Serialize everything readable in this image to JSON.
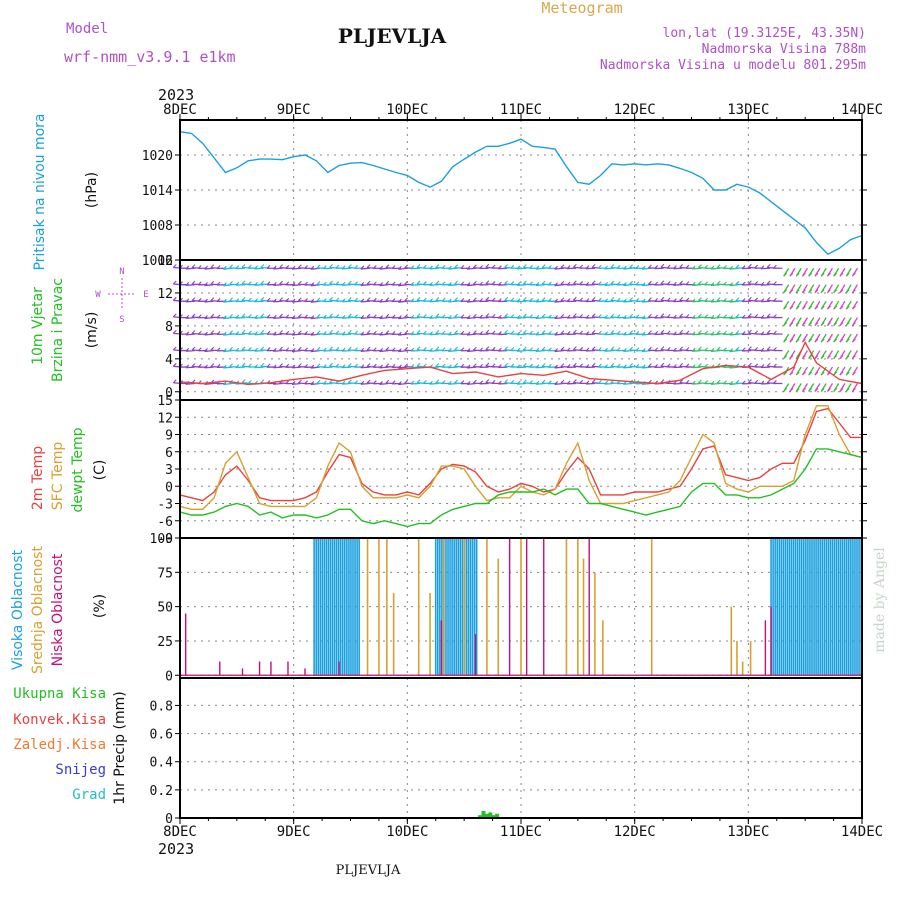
{
  "header": {
    "model_label": "Model",
    "model_name": "wrf-nmm_v3.9.1  e1km",
    "meteogram": "Meteogram",
    "station": "PLJEVLJA",
    "coords": "lon,lat (19.3125E, 43.35N)",
    "elevation": "Nadmorska Visina 788m",
    "model_elevation": "Nadmorska Visina u modelu 801.295m"
  },
  "footer": {
    "station": "PLJEVLJA",
    "watermark": "made by Angel"
  },
  "time_axis": {
    "year": "2023",
    "labels": [
      "8DEC",
      "9DEC",
      "10DEC",
      "11DEC",
      "12DEC",
      "13DEC",
      "14DEC"
    ]
  },
  "colors": {
    "pressure": "#1aa0e0",
    "wind_speed": "#8a3f99",
    "t2m": "#e8423f",
    "sfc": "#d8a030",
    "dewpt": "#22c022",
    "high_cloud": "#1aa0e0",
    "mid_cloud": "#d8a030",
    "low_cloud": "#c0107a",
    "precip": "#22c022"
  },
  "chart_data": [
    {
      "type": "line",
      "panel": "pressure",
      "ylabel": [
        "Pritisak na nivou mora",
        "(hPa)"
      ],
      "yticks": [
        "1020",
        "1014",
        "1008",
        "1002"
      ],
      "ylim": [
        1002,
        1026
      ],
      "x_days": [
        0,
        0.1,
        0.2,
        0.3,
        0.4,
        0.5,
        0.6,
        0.7,
        0.8,
        0.9,
        1.0,
        1.1,
        1.2,
        1.3,
        1.4,
        1.5,
        1.6,
        1.7,
        1.8,
        1.9,
        2.0,
        2.1,
        2.2,
        2.3,
        2.4,
        2.5,
        2.6,
        2.7,
        2.8,
        2.9,
        3.0,
        3.1,
        3.2,
        3.3,
        3.4,
        3.5,
        3.6,
        3.7,
        3.8,
        3.9,
        4.0,
        4.1,
        4.2,
        4.3,
        4.4,
        4.5,
        4.6,
        4.7,
        4.8,
        4.9,
        5.0,
        5.1,
        5.2,
        5.3,
        5.4,
        5.5,
        5.6,
        5.7,
        5.8,
        5.9,
        6.0
      ],
      "values": [
        1024,
        1023.7,
        1022,
        1019.5,
        1017,
        1017.8,
        1019,
        1019.3,
        1019.3,
        1019.2,
        1019.7,
        1020,
        1019,
        1017,
        1018.2,
        1018.6,
        1018.7,
        1018.2,
        1017.6,
        1017,
        1016.5,
        1015.3,
        1014.5,
        1015.5,
        1018,
        1019.3,
        1020.5,
        1021.5,
        1021.5,
        1022,
        1022.7,
        1021.5,
        1021.3,
        1021,
        1018,
        1015.3,
        1015,
        1016.5,
        1018.5,
        1018.3,
        1018.5,
        1018.3,
        1018.5,
        1018.3,
        1017.7,
        1017,
        1016,
        1014,
        1014,
        1015,
        1014.5,
        1013.5,
        1012,
        1010.5,
        1009,
        1007.5,
        1005,
        1003,
        1004,
        1005.5,
        1006.2
      ]
    },
    {
      "type": "line",
      "panel": "wind",
      "ylabel": [
        "10m Vjetar",
        "Brzina i Pravac",
        "(m/s)"
      ],
      "compass": {
        "n": "N",
        "s": "S",
        "e": "E",
        "w": "W"
      },
      "yticks": [
        "16",
        "12",
        "8",
        "4",
        "0"
      ],
      "ylim": [
        -1,
        16
      ],
      "x_days": [
        0,
        0.2,
        0.4,
        0.6,
        0.8,
        1.0,
        1.2,
        1.4,
        1.6,
        1.8,
        2.0,
        2.2,
        2.4,
        2.6,
        2.8,
        3.0,
        3.2,
        3.4,
        3.6,
        3.8,
        4.0,
        4.2,
        4.4,
        4.6,
        4.8,
        5.0,
        5.2,
        5.4,
        5.5,
        5.6,
        5.8,
        6.0
      ],
      "values": [
        1.2,
        1.0,
        1.3,
        0.9,
        1.1,
        1.5,
        1.8,
        1.3,
        2.0,
        2.6,
        2.8,
        3.0,
        2.2,
        2.4,
        1.8,
        2.2,
        2.0,
        2.5,
        1.6,
        1.4,
        1.2,
        1.0,
        1.4,
        2.8,
        3.2,
        3.0,
        1.5,
        3.0,
        6.0,
        3.5,
        1.5,
        1.0
      ]
    },
    {
      "type": "line",
      "panel": "temperature",
      "ylabel": [
        "2m Temp",
        "SFC Temp",
        "dewpt Temp",
        "(C)"
      ],
      "yticks": [
        "15",
        "12",
        "9",
        "6",
        "3",
        "0",
        "-3",
        "-6",
        "-9"
      ],
      "ylim": [
        -9,
        15
      ],
      "x_days": [
        0,
        0.1,
        0.2,
        0.3,
        0.4,
        0.5,
        0.6,
        0.7,
        0.8,
        0.9,
        1.0,
        1.1,
        1.2,
        1.3,
        1.4,
        1.5,
        1.6,
        1.7,
        1.8,
        1.9,
        2.0,
        2.1,
        2.2,
        2.3,
        2.4,
        2.5,
        2.6,
        2.7,
        2.8,
        2.9,
        3.0,
        3.1,
        3.2,
        3.3,
        3.4,
        3.5,
        3.6,
        3.7,
        3.8,
        3.9,
        4.0,
        4.1,
        4.2,
        4.3,
        4.4,
        4.5,
        4.6,
        4.7,
        4.8,
        4.9,
        5.0,
        5.1,
        5.2,
        5.3,
        5.4,
        5.5,
        5.6,
        5.7,
        5.8,
        5.9,
        6.0
      ],
      "series": [
        {
          "name": "2m Temp",
          "values": [
            -1.5,
            -2,
            -2.5,
            -1,
            2,
            3.5,
            1,
            -2,
            -2.5,
            -2.5,
            -2.5,
            -2,
            -1,
            2.5,
            5.5,
            5,
            0.5,
            -1,
            -1.5,
            -1.5,
            -1,
            -1.5,
            0.5,
            3,
            3.8,
            3.5,
            2.5,
            0,
            -1,
            -0.5,
            0.5,
            0,
            -1,
            -0.5,
            2.5,
            5,
            3,
            -1.5,
            -1.5,
            -1.5,
            -1,
            -1,
            -1,
            -0.5,
            0,
            3,
            6.5,
            7,
            2,
            1.5,
            1,
            1.5,
            3,
            4,
            4,
            8,
            13,
            13.5,
            11,
            8.5,
            8.5
          ]
        },
        {
          "name": "SFC Temp",
          "values": [
            -3.5,
            -4,
            -4,
            -2,
            4,
            6,
            1.5,
            -3,
            -3.5,
            -3.5,
            -3.5,
            -3.5,
            -2,
            3.5,
            7.5,
            6,
            0,
            -2,
            -2,
            -2,
            -1.5,
            -2,
            0,
            3.5,
            3.5,
            3,
            0,
            -2.5,
            -2,
            -2,
            0,
            -1,
            -1.5,
            -0.5,
            4,
            7.5,
            1,
            -3,
            -3,
            -3,
            -2.5,
            -2,
            -1.5,
            -1,
            1,
            5,
            9,
            7.5,
            0.5,
            -0.5,
            -1,
            0,
            0,
            0,
            1,
            9,
            14,
            14,
            9,
            5.5,
            5
          ]
        },
        {
          "name": "dewpt Temp",
          "values": [
            -4.5,
            -5,
            -5,
            -4.5,
            -3.5,
            -3,
            -3.5,
            -5,
            -4.5,
            -5.5,
            -5,
            -5,
            -5.5,
            -5,
            -4,
            -4,
            -6,
            -6.5,
            -6,
            -6.5,
            -7,
            -6.5,
            -6.5,
            -5,
            -4,
            -3.5,
            -3,
            -3,
            -1.5,
            -1,
            -1,
            -1,
            -0.5,
            -1.5,
            -0.5,
            -0.5,
            -3,
            -3,
            -3.5,
            -4,
            -4.5,
            -5,
            -4.5,
            -4,
            -3.5,
            -1,
            0.5,
            0.5,
            -1.5,
            -1.5,
            -2,
            -2,
            -1.5,
            -0.5,
            0.5,
            3,
            6.5,
            6.5,
            6,
            5.5,
            5
          ]
        }
      ]
    },
    {
      "type": "bar",
      "panel": "cloud",
      "ylabel": [
        "Visoka Oblacnost",
        "Srednja Oblacnost",
        "Niska Oblacnost",
        "(%)"
      ],
      "yticks": [
        "100",
        "75",
        "50",
        "25",
        "0"
      ],
      "ylim": [
        0,
        100
      ],
      "series": [
        {
          "name": "Visoka Oblacnost",
          "ranges": [
            [
              1.18,
              1.58,
              100
            ],
            [
              2.25,
              2.62,
              100
            ],
            [
              5.2,
              6.0,
              100
            ]
          ]
        },
        {
          "name": "Srednja Oblacnost",
          "points": [
            [
              1.65,
              100
            ],
            [
              1.75,
              100
            ],
            [
              1.82,
              100
            ],
            [
              1.88,
              60
            ],
            [
              2.1,
              100
            ],
            [
              2.2,
              60
            ],
            [
              2.32,
              100
            ],
            [
              2.5,
              100
            ],
            [
              2.7,
              100
            ],
            [
              2.8,
              85
            ],
            [
              3.0,
              100
            ],
            [
              3.4,
              100
            ],
            [
              3.5,
              100
            ],
            [
              3.55,
              85
            ],
            [
              3.65,
              75
            ],
            [
              3.72,
              40
            ],
            [
              4.15,
              100
            ],
            [
              4.85,
              50
            ],
            [
              4.9,
              25
            ],
            [
              4.95,
              10
            ],
            [
              5.02,
              25
            ]
          ]
        },
        {
          "name": "Niska Oblacnost",
          "points": [
            [
              0.05,
              45
            ],
            [
              0.35,
              10
            ],
            [
              0.55,
              5
            ],
            [
              0.7,
              10
            ],
            [
              0.8,
              10
            ],
            [
              0.95,
              10
            ],
            [
              1.1,
              5
            ],
            [
              1.4,
              10
            ],
            [
              2.3,
              40
            ],
            [
              2.6,
              30
            ],
            [
              2.9,
              100
            ],
            [
              3.05,
              100
            ],
            [
              3.2,
              100
            ],
            [
              3.6,
              100
            ],
            [
              5.15,
              40
            ],
            [
              5.2,
              50
            ]
          ]
        }
      ]
    },
    {
      "type": "bar",
      "panel": "precip",
      "ylabel": [
        "1hr Precip (mm)"
      ],
      "legend": [
        "Ukupna Kisa",
        "Konvek.Kisa",
        "Zaledj.Kisa",
        "Snijeg",
        "Grad"
      ],
      "legend_colors": [
        "#22c022",
        "#e8423f",
        "#f07a30",
        "#3a3ad8",
        "#22c0c0"
      ],
      "yticks": [
        "0.8",
        "0.6",
        "0.4",
        "0.2",
        "0"
      ],
      "ylim": [
        0,
        0.95
      ],
      "x_days": [
        2.64,
        2.67,
        2.7,
        2.73,
        2.76,
        2.79
      ],
      "values": [
        0.02,
        0.05,
        0.03,
        0.04,
        0.02,
        0.03
      ]
    }
  ]
}
